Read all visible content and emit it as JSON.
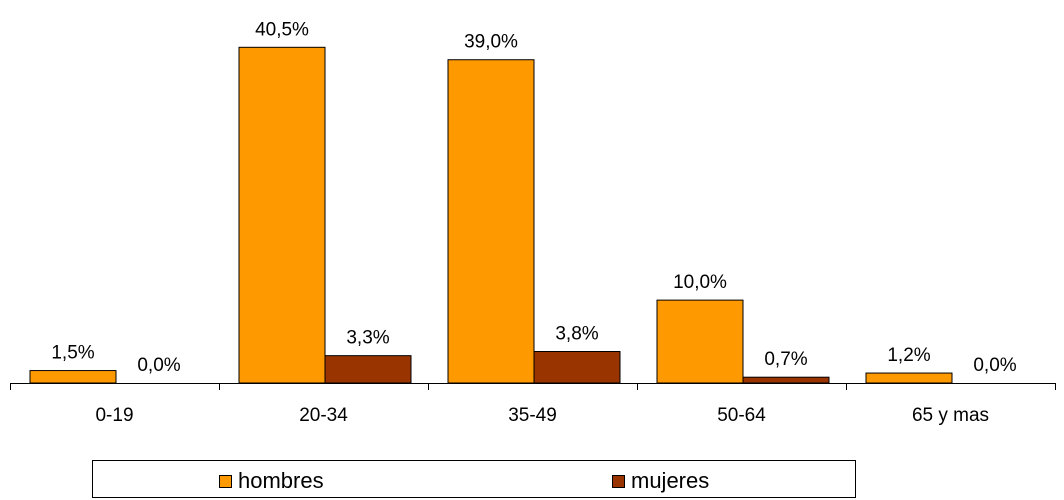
{
  "chart_data": {
    "type": "bar",
    "categories": [
      "0-19",
      "20-34",
      "35-49",
      "50-64",
      "65 y mas"
    ],
    "series": [
      {
        "name": "hombres",
        "values": [
          1.5,
          40.5,
          39.0,
          10.0,
          1.2
        ],
        "labels": [
          "1,5%",
          "40,5%",
          "39,0%",
          "10,0%",
          "1,2%"
        ],
        "color": "#FF9900"
      },
      {
        "name": "mujeres",
        "values": [
          0.0,
          3.3,
          3.8,
          0.7,
          0.0
        ],
        "labels": [
          "0,0%",
          "3,3%",
          "3,8%",
          "0,7%",
          "0,0%"
        ],
        "color": "#993300"
      }
    ],
    "ylim": [
      0,
      45
    ],
    "grid": false,
    "legend": "bottom"
  }
}
